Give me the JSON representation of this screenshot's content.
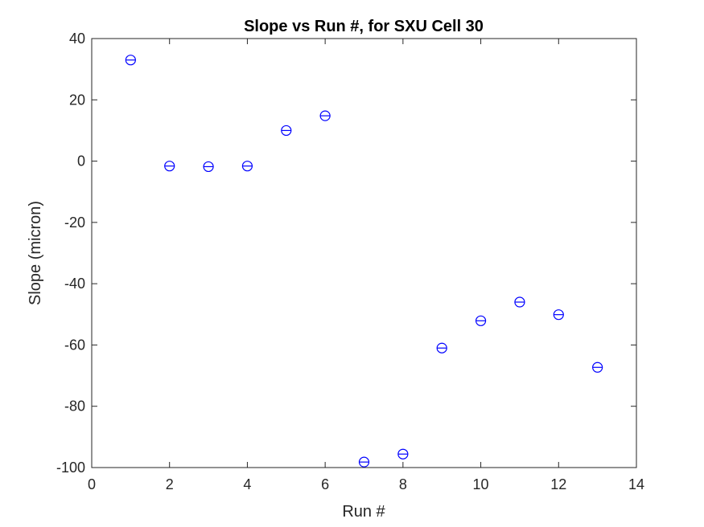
{
  "chart_data": {
    "type": "scatter",
    "title": "Slope vs Run #, for SXU Cell 30",
    "xlabel": "Run #",
    "ylabel": "Slope (micron)",
    "xlim": [
      0,
      14
    ],
    "ylim": [
      -100,
      40
    ],
    "xticks": [
      0,
      2,
      4,
      6,
      8,
      10,
      12,
      14
    ],
    "yticks": [
      -100,
      -80,
      -60,
      -40,
      -20,
      0,
      20,
      40
    ],
    "grid": false,
    "marker": "circle-with-horizontal-line",
    "marker_color": "#0000ff",
    "series": [
      {
        "x": [
          1,
          2,
          3,
          4,
          5,
          6,
          7,
          8,
          9,
          10,
          11,
          12,
          13
        ],
        "y": [
          33,
          -1.6,
          -1.8,
          -1.6,
          10,
          14.8,
          -98.2,
          -95.6,
          -61,
          -52.1,
          -46,
          -50.1,
          -67.3
        ]
      }
    ]
  }
}
